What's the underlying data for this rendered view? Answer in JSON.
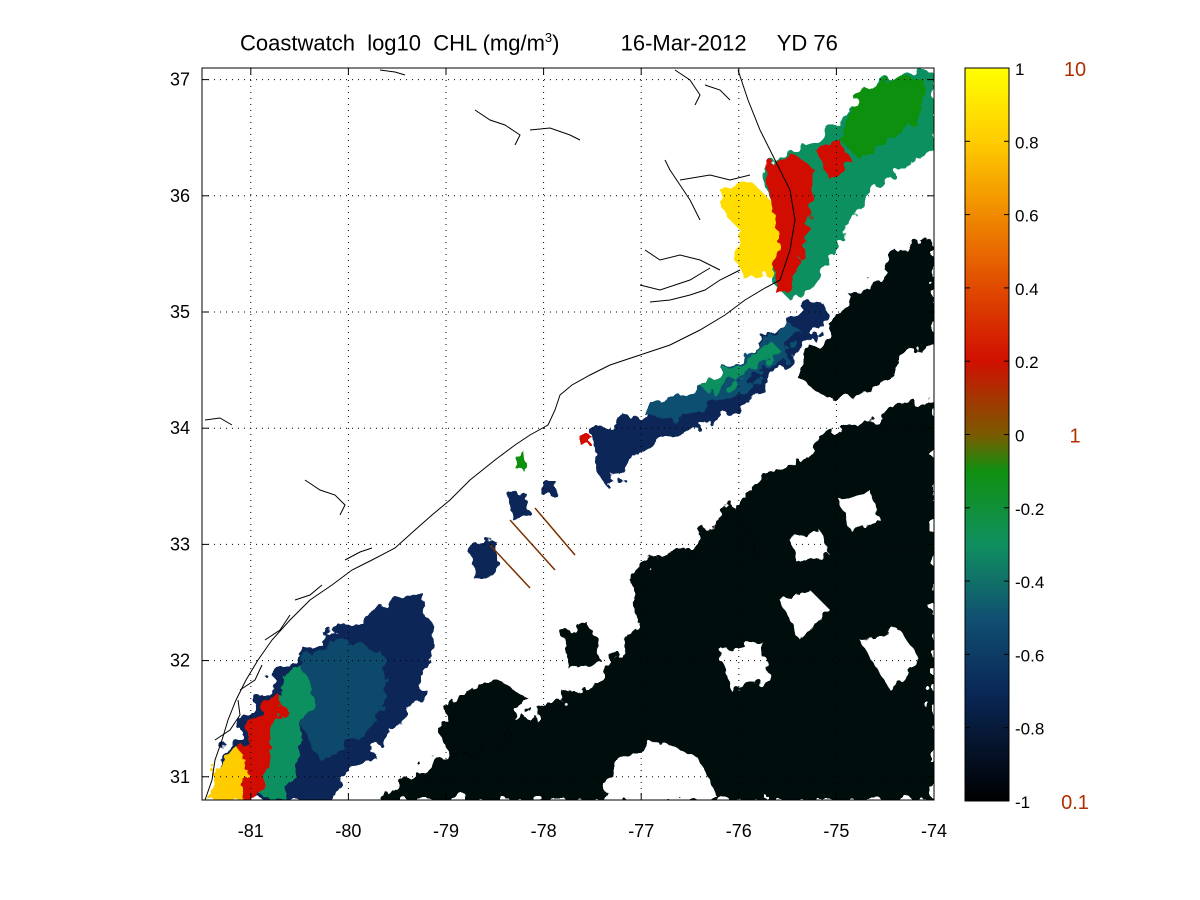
{
  "title": {
    "product": "Coastwatch",
    "variable": "log10",
    "field": "CHL",
    "units_base": "(mg/m",
    "units_exp": "3",
    "units_close": ")",
    "date": "16-Mar-2012",
    "yearday": "YD 76"
  },
  "map": {
    "lon_range": [
      -81.5,
      -74
    ],
    "lat_range": [
      30.8,
      37.1
    ],
    "lon_ticks": [
      "-81",
      "-80",
      "-79",
      "-78",
      "-77",
      "-76",
      "-75",
      "-74"
    ],
    "lat_ticks": [
      "31",
      "32",
      "33",
      "34",
      "35",
      "36",
      "37"
    ],
    "grid": "dotted",
    "coastline_color": "#000000",
    "land_color": "#ffffff",
    "cloud_color": "#ffffff"
  },
  "colorbar": {
    "position": "right",
    "ticks": [
      "1",
      "0.8",
      "0.6",
      "0.4",
      "0.2",
      "0",
      "-0.2",
      "-0.4",
      "-0.6",
      "-0.8",
      "-1"
    ],
    "range": [
      -1,
      1
    ],
    "secondary_labels": [
      "10",
      "1",
      "0.1"
    ],
    "secondary_label_color": "#b03000",
    "colors": [
      "#ffff00",
      "#ffcc00",
      "#f08a00",
      "#e04a00",
      "#d01000",
      "#7a5a00",
      "#109010",
      "#109060",
      "#105070",
      "#0a2858",
      "#000000"
    ]
  },
  "chart_data": {
    "type": "heatmap",
    "title": "Coastwatch  log10  CHL (mg/m3)   16-Mar-2012   YD 76",
    "xlabel": "",
    "ylabel": "",
    "xlim": [
      -81.5,
      -74
    ],
    "ylim": [
      30.8,
      37.1
    ],
    "colorbar_range": [
      -1,
      1
    ],
    "regions": [
      {
        "value": -0.9,
        "lon": [
          -74.0,
          -77.0
        ],
        "lat": [
          31.0,
          34.2
        ]
      },
      {
        "value": -0.6,
        "lon": [
          -80.6,
          -79.2
        ],
        "lat": [
          31.0,
          32.5
        ]
      },
      {
        "value": 0.8,
        "lon": [
          -81.4,
          -80.9
        ],
        "lat": [
          30.9,
          31.6
        ]
      },
      {
        "value": 0.1,
        "lon": [
          -81.0,
          -80.5
        ],
        "lat": [
          31.4,
          32.1
        ]
      },
      {
        "value": -0.5,
        "lon": [
          -77.6,
          -75.0
        ],
        "lat": [
          33.7,
          35.0
        ]
      },
      {
        "value": 0.9,
        "lon": [
          -76.2,
          -75.5
        ],
        "lat": [
          35.3,
          36.1
        ]
      },
      {
        "value": 0.2,
        "lon": [
          -75.8,
          -75.1
        ],
        "lat": [
          35.2,
          36.3
        ]
      },
      {
        "value": -0.2,
        "lon": [
          -75.6,
          -74.0
        ],
        "lat": [
          35.9,
          37.1
        ]
      }
    ]
  }
}
